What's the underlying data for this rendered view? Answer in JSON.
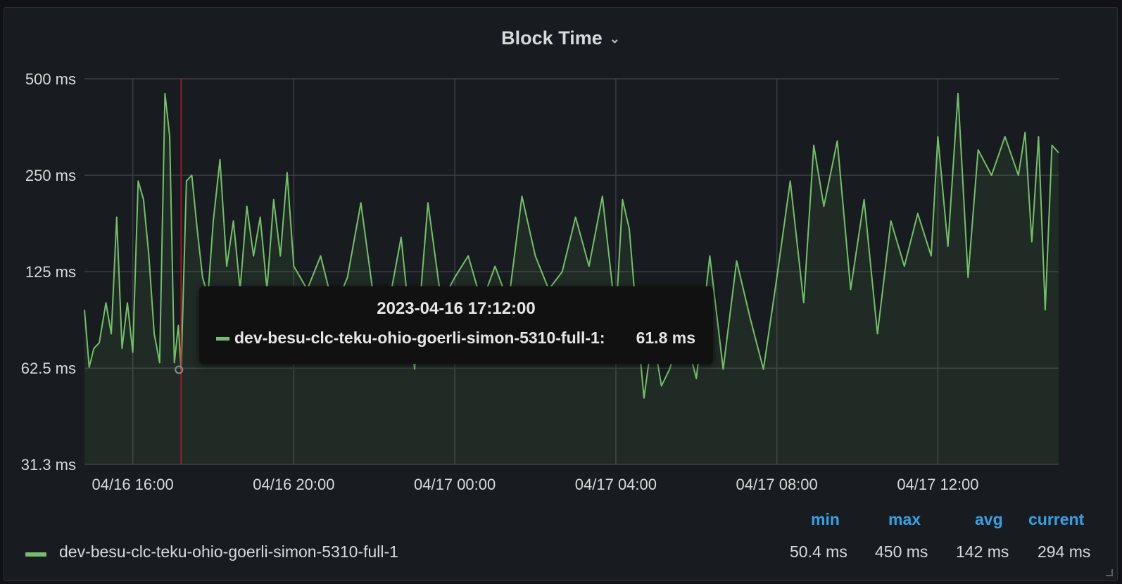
{
  "panel": {
    "title": "Block Time"
  },
  "chart_data": {
    "type": "line",
    "title": "Block Time",
    "y_scale": "log2",
    "y_ticks": [
      "500 ms",
      "250 ms",
      "125 ms",
      "62.5 ms",
      "31.3 ms"
    ],
    "y_tick_values": [
      500,
      250,
      125,
      62.5,
      31.3
    ],
    "ylim": [
      31.3,
      500
    ],
    "xlim": [
      "2023-04-16 14:48",
      "2023-04-17 15:00"
    ],
    "x_ticks": [
      "04/16 16:00",
      "04/16 20:00",
      "04/17 00:00",
      "04/17 04:00",
      "04/17 08:00",
      "04/17 12:00"
    ],
    "x_tick_times": [
      "2023-04-16 16:00",
      "2023-04-16 20:00",
      "2023-04-17 00:00",
      "2023-04-17 04:00",
      "2023-04-17 08:00",
      "2023-04-17 12:00"
    ],
    "grid": true,
    "series": [
      {
        "name": "dev-besu-clc-teku-ohio-goerli-simon-5310-full-1",
        "color": "#73bf69",
        "points": [
          [
            "2023-04-16 14:48",
            95
          ],
          [
            "2023-04-16 14:55",
            63
          ],
          [
            "2023-04-16 15:02",
            72
          ],
          [
            "2023-04-16 15:10",
            75
          ],
          [
            "2023-04-16 15:20",
            100
          ],
          [
            "2023-04-16 15:28",
            80
          ],
          [
            "2023-04-16 15:36",
            185
          ],
          [
            "2023-04-16 15:44",
            72
          ],
          [
            "2023-04-16 15:52",
            100
          ],
          [
            "2023-04-16 16:00",
            70
          ],
          [
            "2023-04-16 16:08",
            240
          ],
          [
            "2023-04-16 16:16",
            210
          ],
          [
            "2023-04-16 16:24",
            140
          ],
          [
            "2023-04-16 16:32",
            80
          ],
          [
            "2023-04-16 16:40",
            65
          ],
          [
            "2023-04-16 16:48",
            450
          ],
          [
            "2023-04-16 16:55",
            330
          ],
          [
            "2023-04-16 17:02",
            65
          ],
          [
            "2023-04-16 17:08",
            85
          ],
          [
            "2023-04-16 17:12",
            61.8
          ],
          [
            "2023-04-16 17:20",
            240
          ],
          [
            "2023-04-16 17:28",
            250
          ],
          [
            "2023-04-16 17:36",
            170
          ],
          [
            "2023-04-16 17:44",
            120
          ],
          [
            "2023-04-16 17:52",
            105
          ],
          [
            "2023-04-16 18:00",
            180
          ],
          [
            "2023-04-16 18:10",
            280
          ],
          [
            "2023-04-16 18:20",
            130
          ],
          [
            "2023-04-16 18:30",
            180
          ],
          [
            "2023-04-16 18:40",
            110
          ],
          [
            "2023-04-16 18:50",
            200
          ],
          [
            "2023-04-16 19:00",
            140
          ],
          [
            "2023-04-16 19:10",
            185
          ],
          [
            "2023-04-16 19:20",
            110
          ],
          [
            "2023-04-16 19:30",
            210
          ],
          [
            "2023-04-16 19:40",
            140
          ],
          [
            "2023-04-16 19:50",
            255
          ],
          [
            "2023-04-16 20:00",
            130
          ],
          [
            "2023-04-16 20:20",
            110
          ],
          [
            "2023-04-16 20:40",
            140
          ],
          [
            "2023-04-16 21:00",
            95
          ],
          [
            "2023-04-16 21:20",
            120
          ],
          [
            "2023-04-16 21:40",
            205
          ],
          [
            "2023-04-16 22:00",
            100
          ],
          [
            "2023-04-16 22:20",
            95
          ],
          [
            "2023-04-16 22:40",
            160
          ],
          [
            "2023-04-16 23:00",
            62
          ],
          [
            "2023-04-16 23:20",
            205
          ],
          [
            "2023-04-16 23:40",
            100
          ],
          [
            "2023-04-17 00:00",
            120
          ],
          [
            "2023-04-17 00:20",
            140
          ],
          [
            "2023-04-17 00:40",
            100
          ],
          [
            "2023-04-17 01:00",
            130
          ],
          [
            "2023-04-17 01:20",
            100
          ],
          [
            "2023-04-17 01:40",
            215
          ],
          [
            "2023-04-17 02:00",
            140
          ],
          [
            "2023-04-17 02:20",
            110
          ],
          [
            "2023-04-17 02:40",
            125
          ],
          [
            "2023-04-17 03:00",
            185
          ],
          [
            "2023-04-17 03:20",
            130
          ],
          [
            "2023-04-17 03:40",
            215
          ],
          [
            "2023-04-17 04:00",
            90
          ],
          [
            "2023-04-17 04:10",
            210
          ],
          [
            "2023-04-17 04:20",
            170
          ],
          [
            "2023-04-17 04:30",
            95
          ],
          [
            "2023-04-17 04:42",
            50.4
          ],
          [
            "2023-04-17 04:55",
            80
          ],
          [
            "2023-04-17 05:08",
            55
          ],
          [
            "2023-04-17 05:20",
            62
          ],
          [
            "2023-04-17 05:40",
            85
          ],
          [
            "2023-04-17 06:00",
            58
          ],
          [
            "2023-04-17 06:20",
            140
          ],
          [
            "2023-04-17 06:40",
            62
          ],
          [
            "2023-04-17 07:00",
            135
          ],
          [
            "2023-04-17 07:20",
            90
          ],
          [
            "2023-04-17 07:40",
            62
          ],
          [
            "2023-04-17 08:00",
            120
          ],
          [
            "2023-04-17 08:20",
            240
          ],
          [
            "2023-04-17 08:40",
            100
          ],
          [
            "2023-04-17 08:55",
            310
          ],
          [
            "2023-04-17 09:10",
            200
          ],
          [
            "2023-04-17 09:30",
            320
          ],
          [
            "2023-04-17 09:50",
            110
          ],
          [
            "2023-04-17 10:10",
            210
          ],
          [
            "2023-04-17 10:30",
            80
          ],
          [
            "2023-04-17 10:50",
            180
          ],
          [
            "2023-04-17 11:10",
            130
          ],
          [
            "2023-04-17 11:30",
            190
          ],
          [
            "2023-04-17 11:50",
            140
          ],
          [
            "2023-04-17 12:00",
            330
          ],
          [
            "2023-04-17 12:15",
            150
          ],
          [
            "2023-04-17 12:30",
            450
          ],
          [
            "2023-04-17 12:45",
            120
          ],
          [
            "2023-04-17 13:00",
            300
          ],
          [
            "2023-04-17 13:20",
            250
          ],
          [
            "2023-04-17 13:40",
            330
          ],
          [
            "2023-04-17 14:00",
            250
          ],
          [
            "2023-04-17 14:10",
            340
          ],
          [
            "2023-04-17 14:20",
            155
          ],
          [
            "2023-04-17 14:30",
            330
          ],
          [
            "2023-04-17 14:40",
            95
          ],
          [
            "2023-04-17 14:50",
            310
          ],
          [
            "2023-04-17 15:00",
            294
          ]
        ]
      }
    ],
    "hover": {
      "time": "2023-04-16 17:12:00",
      "series": "dev-besu-clc-teku-ohio-goerli-simon-5310-full-1:",
      "value": "61.8 ms"
    },
    "legend": {
      "placement": "bottom",
      "headers": {
        "min": "min",
        "max": "max",
        "avg": "avg",
        "current": "current"
      },
      "name": "dev-besu-clc-teku-ohio-goerli-simon-5310-full-1",
      "min": "50.4 ms",
      "max": "450 ms",
      "avg": "142 ms",
      "current": "294 ms"
    },
    "colors": {
      "line": "#73bf69",
      "grid": "#3a3d42",
      "crosshair": "#c4162a",
      "header": "#33a2e5"
    }
  }
}
